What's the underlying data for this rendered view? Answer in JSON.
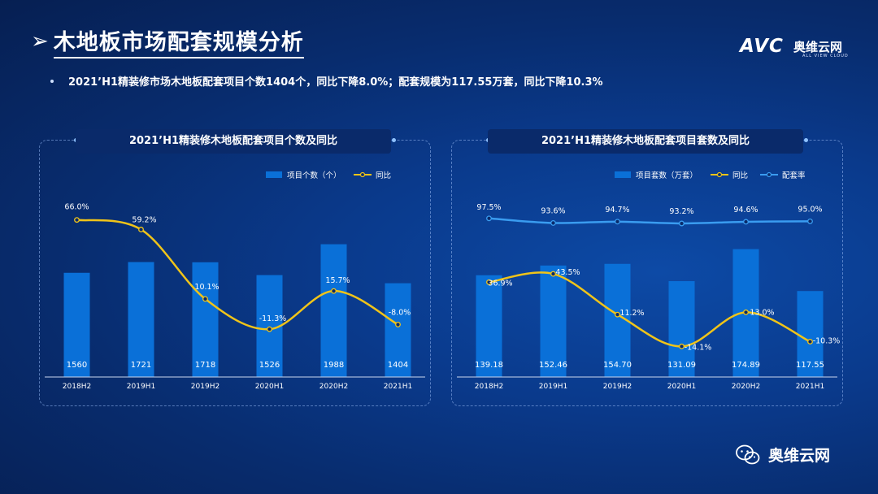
{
  "page": {
    "title": "木地板市场配套规模分析",
    "summary": "2021’H1精装修市场木地板配套项目个数1404个，同比下降8.0%；配套规模为117.55万套，同比下降10.3%",
    "logo": {
      "brand": "AVC",
      "name_cn": "奥维云网",
      "name_en": "ALL VIEW CLOUD"
    },
    "watermark": "奥维云网",
    "icons": {
      "arrow": "arrow-right-icon",
      "wechat": "wechat-icon"
    },
    "colors": {
      "bar": "#0a70d8",
      "yoy_line": "#f0c419",
      "ratio_line": "#3a9cf0"
    }
  },
  "chart_data": [
    {
      "type": "bar",
      "title": "2021’H1精装修木地板配套项目个数及同比",
      "categories": [
        "2018H2",
        "2019H1",
        "2019H2",
        "2020H1",
        "2020H2",
        "2021H1"
      ],
      "series": [
        {
          "name": "项目个数（个）",
          "type": "bar",
          "values": [
            1560,
            1721,
            1718,
            1526,
            1988,
            1404
          ],
          "labels": [
            "1560",
            "1721",
            "1718",
            "1526",
            "1988",
            "1404"
          ]
        },
        {
          "name": "同比",
          "type": "line",
          "values": [
            66.0,
            59.2,
            10.1,
            -11.3,
            15.7,
            -8.0
          ],
          "labels": [
            "66.0%",
            "59.2%",
            "10.1%",
            "-11.3%",
            "15.7%",
            "-8.0%"
          ]
        }
      ],
      "legend": "top-right",
      "grid": false
    },
    {
      "type": "bar",
      "title": "2021’H1精装修木地板配套项目套数及同比",
      "categories": [
        "2018H2",
        "2019H1",
        "2019H2",
        "2020H1",
        "2020H2",
        "2021H1"
      ],
      "series": [
        {
          "name": "项目套数（万套）",
          "type": "bar",
          "values": [
            139.18,
            152.46,
            154.7,
            131.09,
            174.89,
            117.55
          ],
          "labels": [
            "139.18",
            "152.46",
            "154.70",
            "131.09",
            "174.89",
            "117.55"
          ]
        },
        {
          "name": "同比",
          "type": "line",
          "values": [
            36.9,
            43.5,
            11.2,
            -14.1,
            13.0,
            -10.3
          ],
          "labels": [
            "36.9%",
            "43.5%",
            "11.2%",
            "-14.1%",
            "13.0%",
            "-10.3%"
          ]
        },
        {
          "name": "配套率",
          "type": "line",
          "values": [
            97.5,
            93.6,
            94.7,
            93.2,
            94.6,
            95.0
          ],
          "labels": [
            "97.5%",
            "93.6%",
            "94.7%",
            "93.2%",
            "94.6%",
            "95.0%"
          ]
        }
      ],
      "legend": "top-right",
      "grid": false
    }
  ]
}
